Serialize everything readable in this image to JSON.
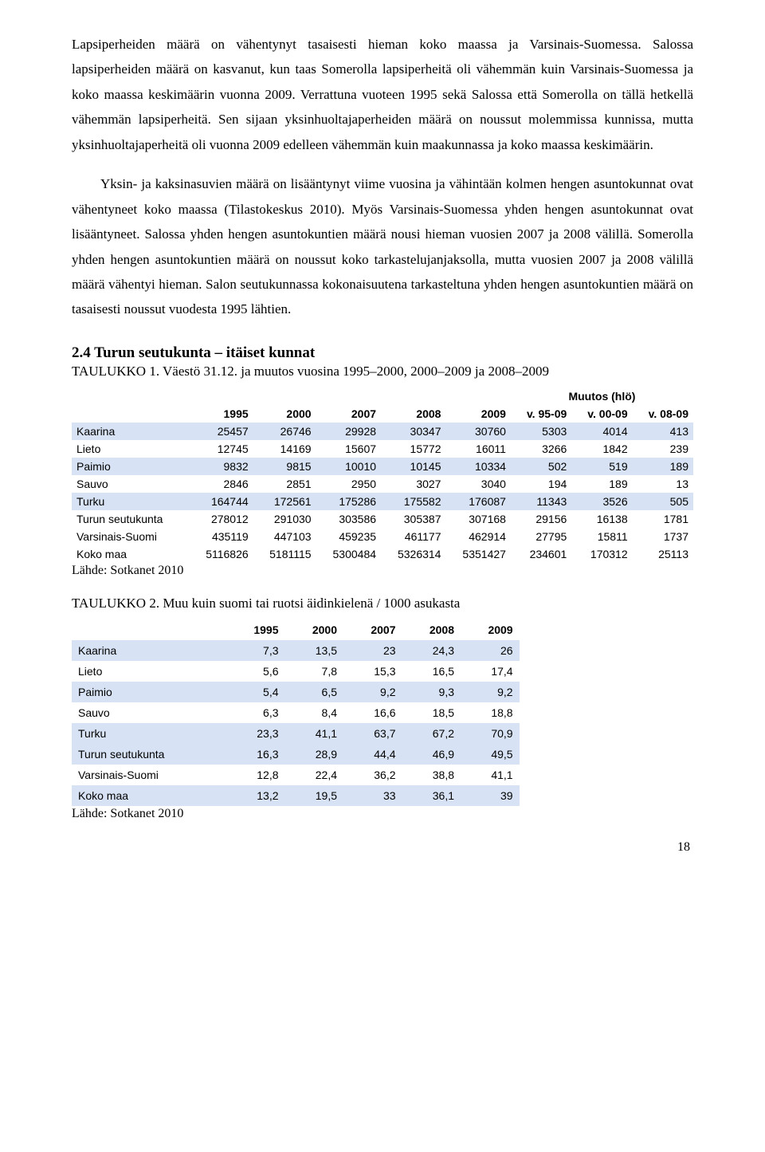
{
  "paragraphs": {
    "p1": "Lapsiperheiden määrä on vähentynyt tasaisesti hieman koko maassa ja Varsinais-Suomessa. Salossa lapsiperheiden määrä on kasvanut, kun taas Somerolla lapsiperheitä oli vähemmän kuin Varsinais-Suomessa ja koko maassa keskimäärin vuonna 2009. Verrattuna vuoteen 1995 sekä Salossa että Somerolla on tällä hetkellä vähemmän lapsiperheitä. Sen sijaan yksinhuoltajaperheiden määrä on noussut molemmissa kunnissa, mutta yksinhuoltajaperheitä oli vuonna 2009 edelleen vähemmän kuin maakunnassa ja koko maassa keskimäärin.",
    "p2": "Yksin- ja kaksinasuvien määrä on lisääntynyt viime vuosina ja vähintään kolmen hengen asuntokunnat ovat vähentyneet koko maassa (Tilastokeskus 2010). Myös Varsinais-Suomessa yhden hengen asuntokunnat ovat lisääntyneet. Salossa yhden hengen asuntokuntien määrä nousi hieman vuosien 2007 ja 2008 välillä. Somerolla yhden hengen asuntokuntien määrä on noussut koko tarkastelujanjaksolla, mutta vuosien 2007 ja 2008 välillä määrä vähentyi hieman. Salon seutukunnassa kokonaisuutena tarkasteltuna yhden hengen asuntokuntien määrä on tasaisesti noussut vuodesta 1995 lähtien."
  },
  "section_title": "2.4 Turun seutukunta – itäiset kunnat",
  "table1": {
    "caption": "TAULUKKO 1. Väestö 31.12. ja muutos vuosina 1995–2000, 2000–2009 ja 2008–2009",
    "muutos_label": "Muutos (hlö)",
    "cols": [
      "",
      "1995",
      "2000",
      "2007",
      "2008",
      "2009",
      "v. 95-09",
      "v. 00-09",
      "v. 08-09"
    ],
    "rows": [
      {
        "band": true,
        "c": [
          "Kaarina",
          "25457",
          "26746",
          "29928",
          "30347",
          "30760",
          "5303",
          "4014",
          "413"
        ]
      },
      {
        "band": false,
        "c": [
          "Lieto",
          "12745",
          "14169",
          "15607",
          "15772",
          "16011",
          "3266",
          "1842",
          "239"
        ]
      },
      {
        "band": true,
        "c": [
          "Paimio",
          "9832",
          "9815",
          "10010",
          "10145",
          "10334",
          "502",
          "519",
          "189"
        ]
      },
      {
        "band": false,
        "c": [
          "Sauvo",
          "2846",
          "2851",
          "2950",
          "3027",
          "3040",
          "194",
          "189",
          "13"
        ]
      },
      {
        "band": true,
        "c": [
          "Turku",
          "164744",
          "172561",
          "175286",
          "175582",
          "176087",
          "11343",
          "3526",
          "505"
        ]
      },
      {
        "band": false,
        "c": [
          "Turun seutukunta",
          "278012",
          "291030",
          "303586",
          "305387",
          "307168",
          "29156",
          "16138",
          "1781"
        ]
      },
      {
        "band": false,
        "c": [
          "Varsinais-Suomi",
          "435119",
          "447103",
          "459235",
          "461177",
          "462914",
          "27795",
          "15811",
          "1737"
        ]
      },
      {
        "band": false,
        "c": [
          "Koko maa",
          "5116826",
          "5181115",
          "5300484",
          "5326314",
          "5351427",
          "234601",
          "170312",
          "25113"
        ]
      }
    ],
    "source": "Lähde: Sotkanet 2010"
  },
  "table2": {
    "caption": "TAULUKKO 2. Muu kuin suomi tai ruotsi äidinkielenä / 1000 asukasta",
    "cols": [
      "",
      "1995",
      "2000",
      "2007",
      "2008",
      "2009"
    ],
    "rows": [
      {
        "band": true,
        "c": [
          "Kaarina",
          "7,3",
          "13,5",
          "23",
          "24,3",
          "26"
        ]
      },
      {
        "band": false,
        "c": [
          "Lieto",
          "5,6",
          "7,8",
          "15,3",
          "16,5",
          "17,4"
        ]
      },
      {
        "band": true,
        "c": [
          "Paimio",
          "5,4",
          "6,5",
          "9,2",
          "9,3",
          "9,2"
        ]
      },
      {
        "band": false,
        "c": [
          "Sauvo",
          "6,3",
          "8,4",
          "16,6",
          "18,5",
          "18,8"
        ]
      },
      {
        "band": true,
        "c": [
          "Turku",
          "23,3",
          "41,1",
          "63,7",
          "67,2",
          "70,9"
        ]
      },
      {
        "band": true,
        "c": [
          "Turun seutukunta",
          "16,3",
          "28,9",
          "44,4",
          "46,9",
          "49,5"
        ]
      },
      {
        "band": false,
        "c": [
          "Varsinais-Suomi",
          "12,8",
          "22,4",
          "36,2",
          "38,8",
          "41,1"
        ]
      },
      {
        "band": true,
        "c": [
          "Koko maa",
          "13,2",
          "19,5",
          "33",
          "36,1",
          "39"
        ]
      }
    ],
    "source": "Lähde: Sotkanet 2010"
  },
  "page_number": "18",
  "styles": {
    "band_color": "#d7e3f4",
    "background": "#ffffff",
    "text_color": "#000000"
  }
}
